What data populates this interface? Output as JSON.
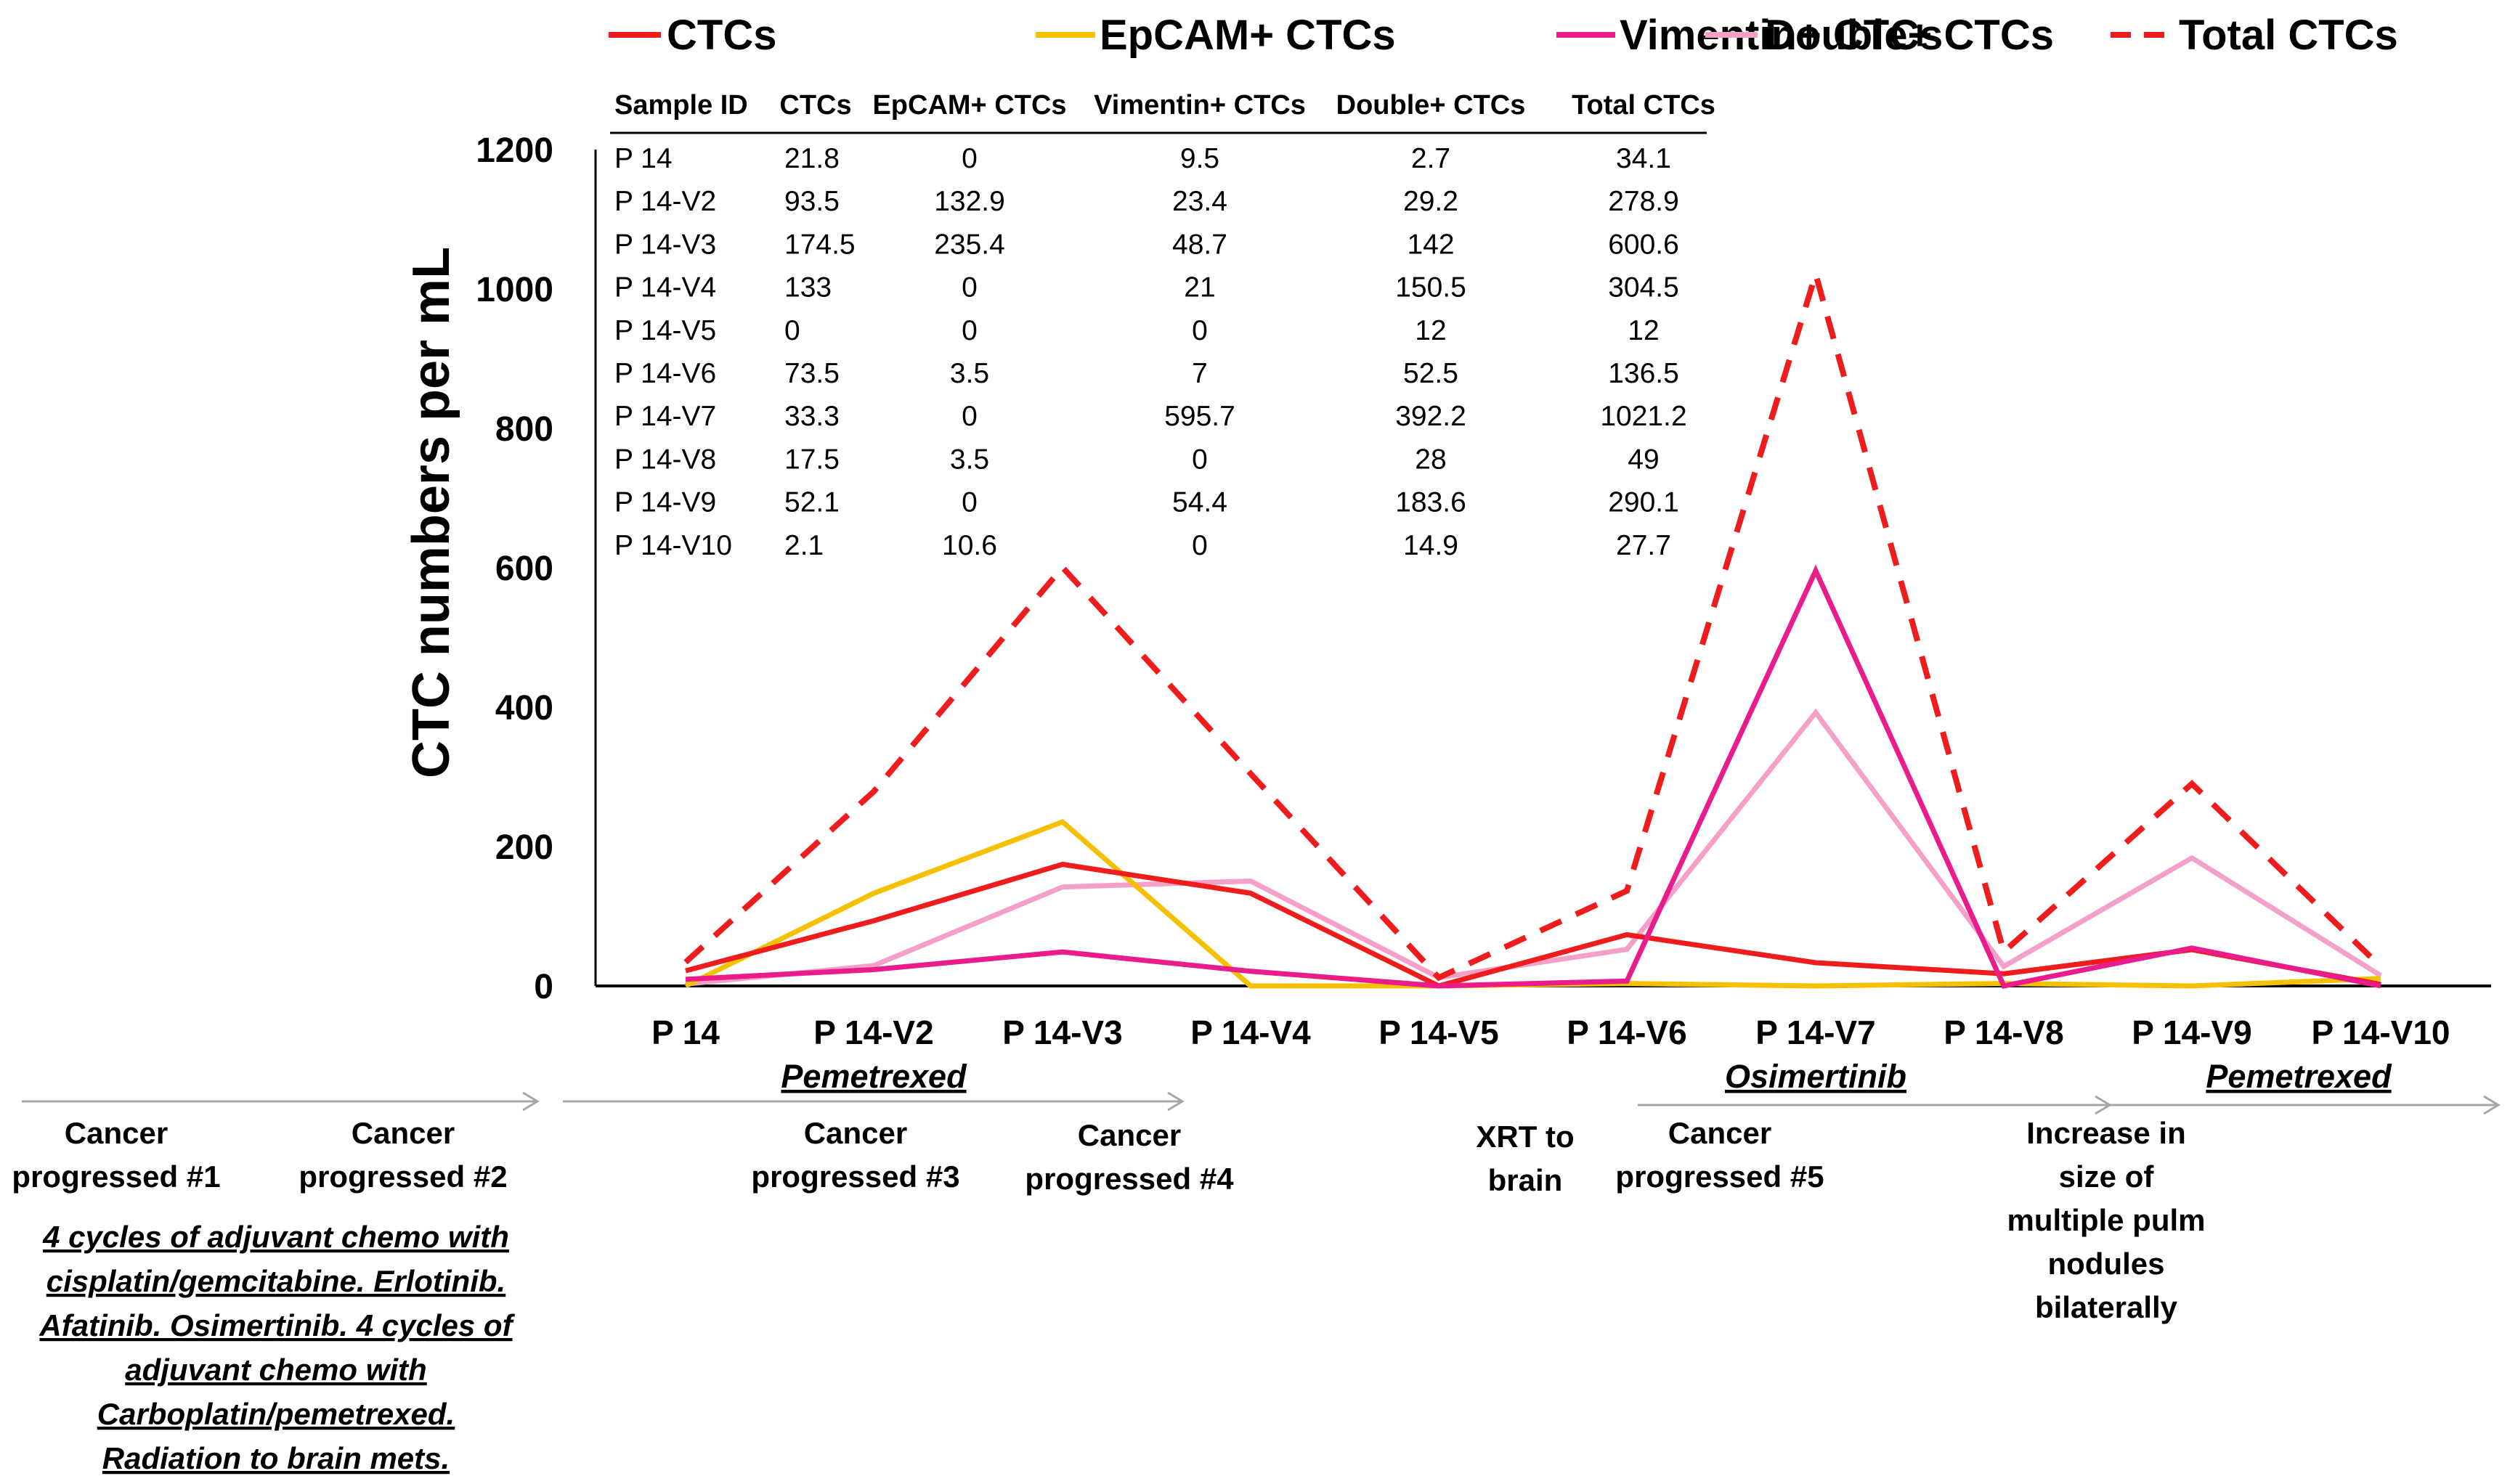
{
  "chart_data": {
    "type": "line",
    "ylabel": "CTC numbers per mL",
    "xlabel": "",
    "ylim": [
      0,
      1200
    ],
    "yticks": [
      "0",
      "200",
      "400",
      "600",
      "800",
      "1000",
      "1200"
    ],
    "grid": false,
    "legend_position": "top",
    "categories": [
      "P 14",
      "P 14-V2",
      "P 14-V3",
      "P 14-V4",
      "P 14-V5",
      "P 14-V6",
      "P 14-V7",
      "P 14-V8",
      "P 14-V9",
      "P 14-V10"
    ],
    "series": [
      {
        "name": "CTCs",
        "color": "#ee1c1c",
        "dashed": false,
        "values": [
          21.8,
          93.5,
          174.5,
          133,
          0,
          73.5,
          33.3,
          17.5,
          52.1,
          2.1
        ]
      },
      {
        "name": "EpCAM+ CTCs",
        "color": "#f5c000",
        "dashed": false,
        "values": [
          0,
          132.9,
          235.4,
          0,
          0,
          3.5,
          0,
          3.5,
          0,
          10.6
        ]
      },
      {
        "name": "Vimentin+ CTCs",
        "color": "#ea1b8b",
        "dashed": false,
        "values": [
          9.5,
          23.4,
          48.7,
          21,
          0,
          7,
          595.7,
          0,
          54.4,
          0
        ]
      },
      {
        "name": "Double+ CTCs",
        "color": "#f5a0c8",
        "dashed": false,
        "values": [
          2.7,
          29.2,
          142,
          150.5,
          12,
          52.5,
          392.2,
          28,
          183.6,
          14.9
        ]
      },
      {
        "name": "Total CTCs",
        "color": "#ee1c1c",
        "dashed": true,
        "values": [
          34.1,
          278.9,
          600.6,
          304.5,
          12,
          136.5,
          1021.2,
          49,
          290.1,
          27.7
        ]
      }
    ],
    "table": {
      "headers": [
        "Sample ID",
        "CTCs",
        "EpCAM+ CTCs",
        "Vimentin+ CTCs",
        "Double+ CTCs",
        "Total CTCs"
      ],
      "rows": [
        [
          "P 14",
          "21.8",
          "0",
          "9.5",
          "2.7",
          "34.1"
        ],
        [
          "P 14-V2",
          "93.5",
          "132.9",
          "23.4",
          "29.2",
          "278.9"
        ],
        [
          "P 14-V3",
          "174.5",
          "235.4",
          "48.7",
          "142",
          "600.6"
        ],
        [
          "P 14-V4",
          "133",
          "0",
          "21",
          "150.5",
          "304.5"
        ],
        [
          "P 14-V5",
          "0",
          "0",
          "0",
          "12",
          "12"
        ],
        [
          "P 14-V6",
          "73.5",
          "3.5",
          "7",
          "52.5",
          "136.5"
        ],
        [
          "P 14-V7",
          "33.3",
          "0",
          "595.7",
          "392.2",
          "1021.2"
        ],
        [
          "P 14-V8",
          "17.5",
          "3.5",
          "0",
          "28",
          "49"
        ],
        [
          "P 14-V9",
          "52.1",
          "0",
          "54.4",
          "183.6",
          "290.1"
        ],
        [
          "P 14-V10",
          "2.1",
          "10.6",
          "0",
          "14.9",
          "27.7"
        ]
      ]
    }
  },
  "annotations": {
    "drugs": [
      "Pemetrexed",
      "Osimertinib",
      "Pemetrexed"
    ],
    "events": [
      [
        "Cancer",
        "progressed #1"
      ],
      [
        "Cancer",
        "progressed #2"
      ],
      [
        "Cancer",
        "progressed #3"
      ],
      [
        "Cancer",
        "progressed #4"
      ],
      [
        "XRT to",
        "brain"
      ],
      [
        "Cancer",
        "progressed #5"
      ],
      [
        "Increase in",
        "size of",
        "multiple pulm",
        "nodules",
        "bilaterally"
      ]
    ],
    "history": [
      "4 cycles of adjuvant chemo with",
      "cisplatin/gemcitabine. Erlotinib.",
      "Afatinib. Osimertinib. 4 cycles of",
      "adjuvant chemo with",
      "Carboplatin/pemetrexed.",
      "Radiation to brain mets."
    ]
  },
  "colors": {
    "arrow": "#a6a6a6",
    "axis": "#000000"
  }
}
